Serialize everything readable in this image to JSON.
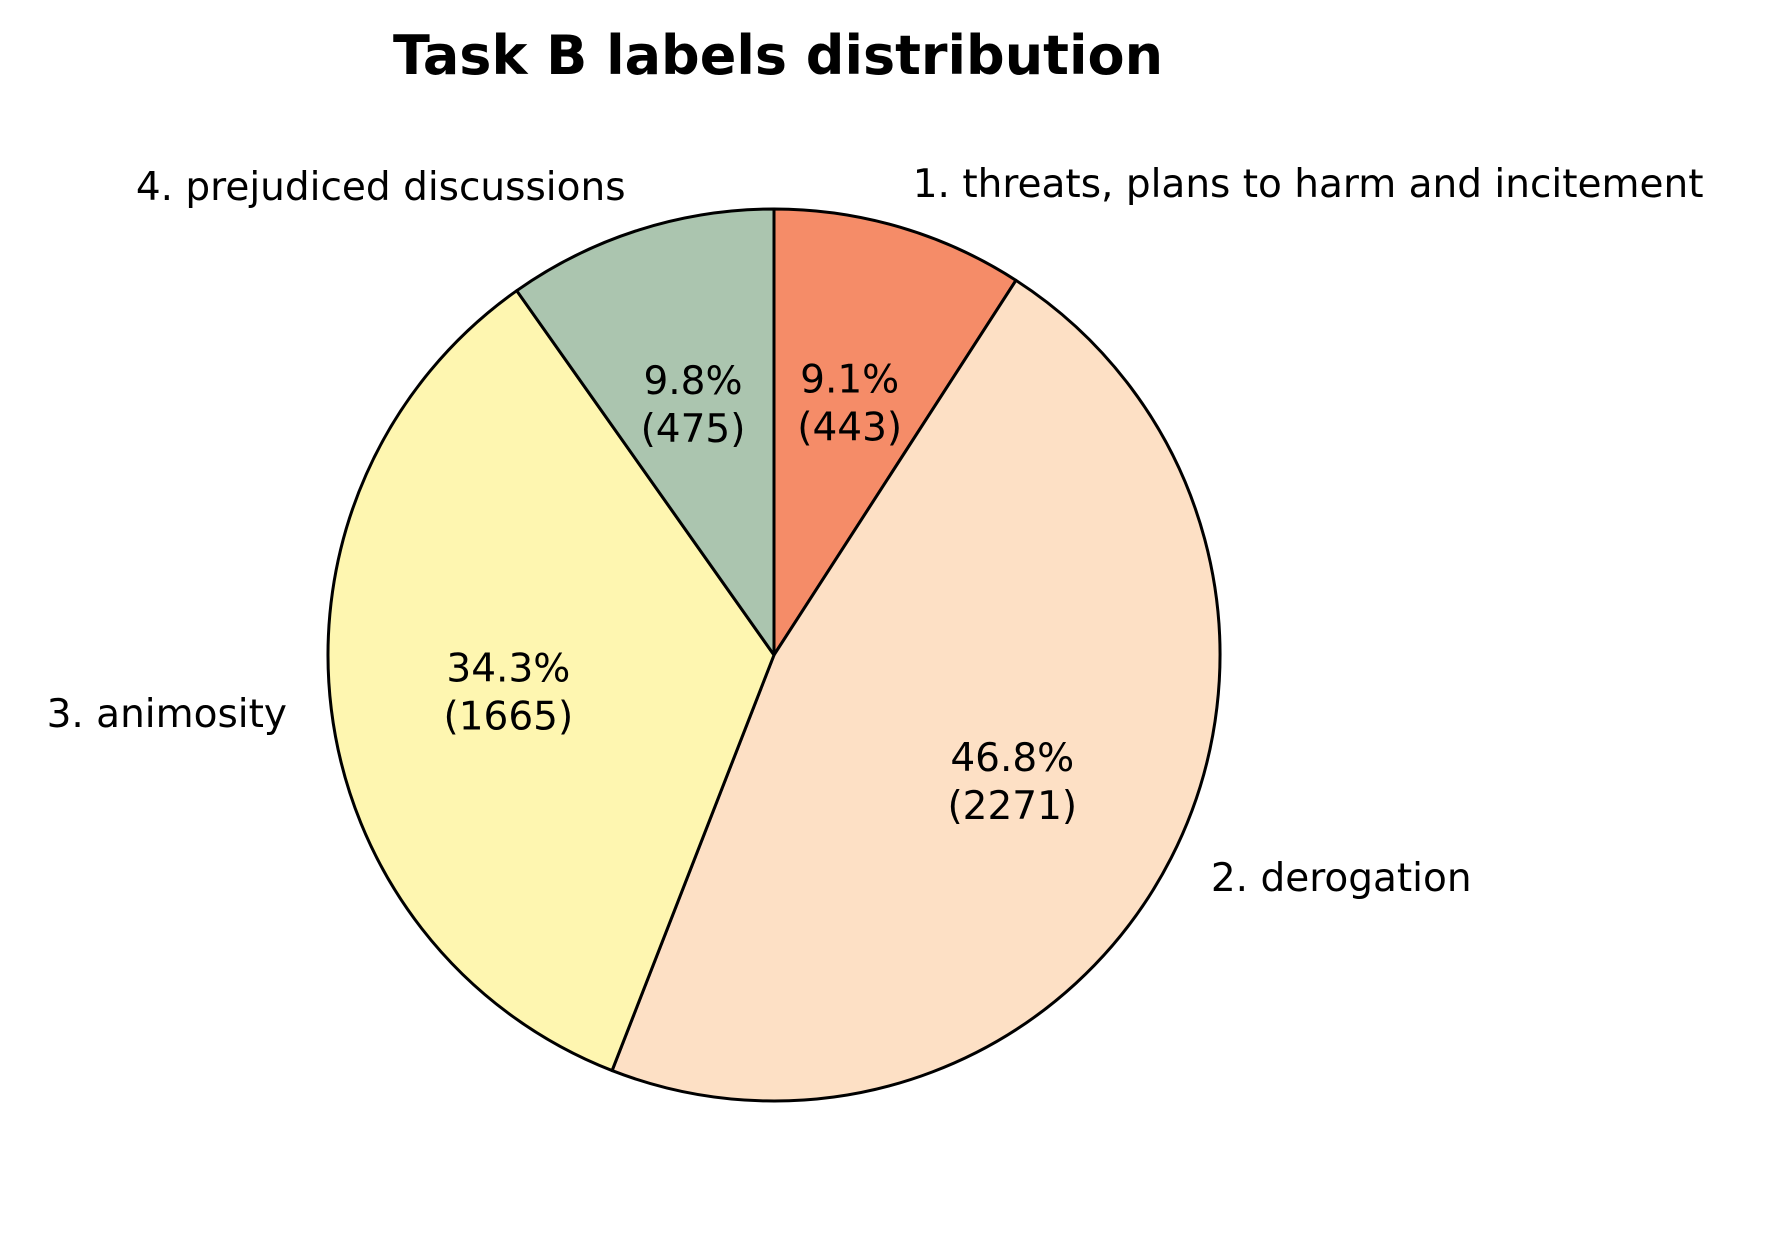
{
  "chart_data": {
    "type": "pie",
    "title": "Task B labels distribution",
    "slices": [
      {
        "label": "1. threats, plans to harm and incitement",
        "value": 443,
        "percent_label": "9.1%",
        "count_label": "(443)",
        "color": "#f58c68"
      },
      {
        "label": "2. derogation",
        "value": 2271,
        "percent_label": "46.8%",
        "count_label": "(2271)",
        "color": "#fde0c5"
      },
      {
        "label": "3. animosity",
        "value": 1665,
        "percent_label": "34.3%",
        "count_label": "(1665)",
        "color": "#fef6b0"
      },
      {
        "label": "4. prejudiced discussions",
        "value": 475,
        "percent_label": "9.8%",
        "count_label": "(475)",
        "color": "#abc5af"
      }
    ],
    "start_angle": "12 o'clock",
    "direction": "clockwise",
    "legend": "none"
  }
}
